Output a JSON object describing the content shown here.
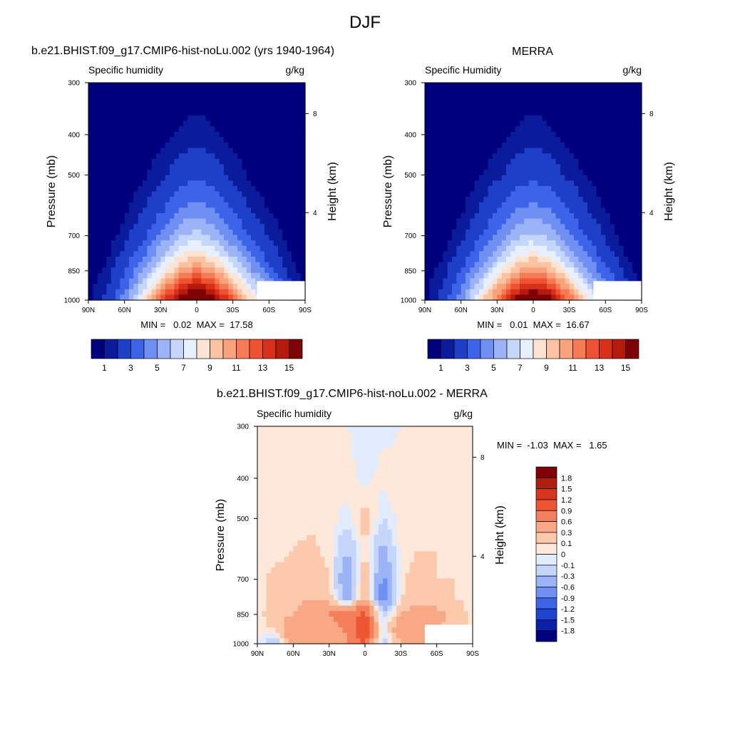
{
  "figure": {
    "title": "DJF",
    "panels": {
      "model": {
        "title": "b.e21.BHIST.f09_g17.CMIP6-hist-noLu.002 (yrs 1940-1964)",
        "variable": "Specific humidity",
        "units": "g/kg",
        "minmax": "MIN =   0.02  MAX =  17.58"
      },
      "obs": {
        "title": "MERRA",
        "variable": "Specific Humidity",
        "units": "g/kg",
        "minmax": "MIN =   0.01  MAX =  16.67"
      },
      "diff": {
        "title": "b.e21.BHIST.f09_g17.CMIP6-hist-noLu.002 - MERRA",
        "variable": "Specific humidity",
        "units": "g/kg",
        "minmax": "MIN =  -1.03  MAX =   1.65"
      }
    },
    "y_label": "Pressure (mb)",
    "y2_label": "Height (km)",
    "pressure_ticks": [
      "300",
      "400",
      "500",
      "700",
      "850",
      "1000"
    ],
    "height_ticks": [
      "8",
      "4"
    ],
    "lat_ticks": [
      "90N",
      "60N",
      "30N",
      "0",
      "30S",
      "60S",
      "90S"
    ]
  },
  "colors": {
    "abs_scale": [
      "#00007f",
      "#0a1b9c",
      "#1e3fc8",
      "#3d63e8",
      "#6f8ff2",
      "#9cb4f7",
      "#c6d6fb",
      "#e8f0ff",
      "#fde3d2",
      "#fcc3a3",
      "#f9a27c",
      "#f67b55",
      "#ee5230",
      "#d9301a",
      "#b51a0d",
      "#7e0306"
    ],
    "diff_scale": [
      "#00007f",
      "#0a20a8",
      "#1f43d2",
      "#3d63e8",
      "#6f8ff2",
      "#9cb4f7",
      "#c6d6fb",
      "#e3ecff",
      "#fde8da",
      "#fcc9ad",
      "#f9a886",
      "#f67f5b",
      "#ee5632",
      "#d6361b",
      "#b01f0e",
      "#7e0306"
    ]
  },
  "chart_data": [
    {
      "type": "heatmap",
      "title": "b.e21.BHIST.f09_g17.CMIP6-hist-noLu.002 (yrs 1940-1964)",
      "subtitle": "Specific humidity",
      "units": "g/kg",
      "xlabel": "",
      "ylabel": "Pressure (mb)",
      "y2label": "Height (km)",
      "x_ticks": [
        "90N",
        "60N",
        "30N",
        "0",
        "30S",
        "60S",
        "90S"
      ],
      "y_ticks": [
        300,
        400,
        500,
        700,
        850,
        1000
      ],
      "xlim": [
        -90,
        90
      ],
      "ylim": [
        1000,
        300
      ],
      "y_scale": "log",
      "colorbar": {
        "position": "bottom",
        "levels": [
          0.5,
          1,
          2,
          3,
          4,
          5,
          6,
          7,
          8,
          9,
          10,
          11,
          12,
          13,
          14,
          15
        ],
        "tick_labels": [
          "1",
          "3",
          "5",
          "7",
          "9",
          "11",
          "13",
          "15"
        ]
      },
      "min": 0.02,
      "max": 17.58,
      "x": [
        -90,
        -75,
        -60,
        -45,
        -30,
        -15,
        0,
        15,
        30,
        45,
        60,
        75,
        90
      ],
      "y": [
        1000,
        925,
        850,
        775,
        700,
        600,
        500,
        400,
        300
      ],
      "values": [
        [
          0.4,
          1.2,
          3.5,
          6.8,
          11.0,
          15.0,
          17.0,
          15.0,
          11.0,
          7.8,
          5.5,
          2.5,
          0.4
        ],
        [
          0.3,
          0.9,
          2.6,
          5.3,
          8.8,
          12.0,
          13.5,
          12.0,
          9.0,
          6.0,
          3.8,
          1.4,
          0.3
        ],
        [
          0.2,
          0.6,
          1.8,
          3.9,
          6.5,
          9.0,
          10.3,
          9.1,
          6.6,
          4.2,
          2.4,
          0.9,
          0.2
        ],
        [
          0.15,
          0.4,
          1.2,
          2.7,
          4.7,
          6.7,
          7.6,
          6.6,
          4.7,
          2.9,
          1.5,
          0.6,
          0.15
        ],
        [
          0.1,
          0.25,
          0.7,
          1.7,
          3.2,
          4.8,
          5.5,
          4.6,
          3.2,
          1.8,
          0.9,
          0.35,
          0.1
        ],
        [
          0.05,
          0.12,
          0.35,
          0.9,
          1.7,
          2.8,
          3.4,
          2.8,
          1.8,
          0.9,
          0.45,
          0.15,
          0.05
        ],
        [
          0.03,
          0.06,
          0.15,
          0.4,
          0.8,
          1.4,
          1.8,
          1.4,
          0.8,
          0.4,
          0.2,
          0.08,
          0.03
        ],
        [
          0.02,
          0.03,
          0.05,
          0.12,
          0.3,
          0.55,
          0.75,
          0.55,
          0.3,
          0.12,
          0.06,
          0.03,
          0.02
        ],
        [
          0.02,
          0.02,
          0.02,
          0.04,
          0.08,
          0.14,
          0.2,
          0.14,
          0.08,
          0.04,
          0.02,
          0.02,
          0.02
        ]
      ]
    },
    {
      "type": "heatmap",
      "title": "MERRA",
      "subtitle": "Specific Humidity",
      "units": "g/kg",
      "xlabel": "",
      "ylabel": "Pressure (mb)",
      "y2label": "Height (km)",
      "x_ticks": [
        "90N",
        "60N",
        "30N",
        "0",
        "30S",
        "60S",
        "90S"
      ],
      "y_ticks": [
        300,
        400,
        500,
        700,
        850,
        1000
      ],
      "xlim": [
        -90,
        90
      ],
      "ylim": [
        1000,
        300
      ],
      "y_scale": "log",
      "colorbar": {
        "position": "bottom",
        "levels": [
          0.5,
          1,
          2,
          3,
          4,
          5,
          6,
          7,
          8,
          9,
          10,
          11,
          12,
          13,
          14,
          15
        ],
        "tick_labels": [
          "1",
          "3",
          "5",
          "7",
          "9",
          "11",
          "13",
          "15"
        ]
      },
      "min": 0.01,
      "max": 16.67,
      "x": [
        -90,
        -75,
        -60,
        -45,
        -30,
        -15,
        0,
        15,
        30,
        45,
        60,
        75,
        90
      ],
      "y": [
        1000,
        925,
        850,
        775,
        700,
        600,
        500,
        400,
        300
      ],
      "values": [
        [
          0.4,
          1.3,
          3.8,
          7.0,
          10.8,
          14.5,
          16.3,
          14.5,
          11.0,
          7.6,
          5.0,
          2.2,
          0.4
        ],
        [
          0.3,
          1.0,
          2.8,
          5.4,
          8.6,
          11.5,
          12.8,
          11.6,
          8.8,
          5.8,
          3.5,
          1.3,
          0.3
        ],
        [
          0.2,
          0.7,
          1.9,
          4.0,
          6.4,
          8.7,
          9.9,
          8.8,
          6.4,
          4.1,
          2.3,
          0.9,
          0.2
        ],
        [
          0.15,
          0.45,
          1.3,
          2.8,
          4.6,
          6.5,
          7.3,
          6.4,
          4.5,
          2.8,
          1.4,
          0.55,
          0.15
        ],
        [
          0.1,
          0.27,
          0.75,
          1.8,
          3.2,
          4.7,
          5.3,
          4.5,
          3.1,
          1.8,
          0.85,
          0.33,
          0.1
        ],
        [
          0.05,
          0.13,
          0.37,
          0.95,
          1.8,
          2.8,
          3.3,
          2.8,
          1.8,
          0.95,
          0.45,
          0.15,
          0.05
        ],
        [
          0.03,
          0.06,
          0.15,
          0.42,
          0.82,
          1.4,
          1.75,
          1.4,
          0.82,
          0.42,
          0.2,
          0.08,
          0.03
        ],
        [
          0.02,
          0.03,
          0.05,
          0.12,
          0.3,
          0.55,
          0.72,
          0.55,
          0.3,
          0.12,
          0.06,
          0.03,
          0.02
        ],
        [
          0.01,
          0.02,
          0.02,
          0.04,
          0.08,
          0.14,
          0.2,
          0.14,
          0.08,
          0.04,
          0.02,
          0.02,
          0.01
        ]
      ]
    },
    {
      "type": "heatmap",
      "title": "b.e21.BHIST.f09_g17.CMIP6-hist-noLu.002 - MERRA",
      "subtitle": "Specific humidity",
      "units": "g/kg",
      "xlabel": "",
      "ylabel": "Pressure (mb)",
      "y2label": "Height (km)",
      "x_ticks": [
        "90N",
        "60N",
        "30N",
        "0",
        "30S",
        "60S",
        "90S"
      ],
      "y_ticks": [
        300,
        400,
        500,
        700,
        850,
        1000
      ],
      "xlim": [
        -90,
        90
      ],
      "ylim": [
        1000,
        300
      ],
      "y_scale": "log",
      "colorbar": {
        "position": "right",
        "levels": [
          -1.8,
          -1.5,
          -1.2,
          -0.9,
          -0.6,
          -0.3,
          -0.1,
          0,
          0.1,
          0.3,
          0.6,
          0.9,
          1.2,
          1.5,
          1.8
        ],
        "tick_labels": [
          "1.8",
          "1.5",
          "1.2",
          "0.9",
          "0.6",
          "0.3",
          "0.1",
          "0",
          "-0.1",
          "-0.3",
          "-0.6",
          "-0.9",
          "-1.2",
          "-1.5",
          "-1.8"
        ]
      },
      "min": -1.03,
      "max": 1.65,
      "x": [
        -90,
        -75,
        -60,
        -45,
        -30,
        -15,
        0,
        15,
        30,
        45,
        60,
        75,
        90
      ],
      "y": [
        1000,
        925,
        850,
        775,
        700,
        600,
        500,
        400,
        300
      ],
      "values": [
        [
          0.0,
          -0.3,
          0.6,
          0.4,
          0.3,
          0.5,
          1.0,
          -0.2,
          0.3,
          0.4,
          0.5,
          0.3,
          0.0
        ],
        [
          0.05,
          0.1,
          0.6,
          0.5,
          0.4,
          0.7,
          1.2,
          -0.1,
          0.6,
          0.5,
          0.3,
          0.2,
          0.05
        ],
        [
          0.05,
          0.2,
          0.3,
          0.5,
          0.6,
          0.8,
          1.0,
          -0.2,
          0.3,
          0.5,
          0.4,
          0.2,
          0.05
        ],
        [
          0.05,
          0.15,
          0.2,
          0.3,
          0.2,
          -0.5,
          0.4,
          -0.9,
          0.1,
          0.2,
          0.15,
          0.1,
          0.05
        ],
        [
          0.05,
          0.15,
          0.2,
          0.3,
          0.1,
          -0.6,
          0.3,
          -0.7,
          0.05,
          0.2,
          0.1,
          0.1,
          0.05
        ],
        [
          0.05,
          0.05,
          0.1,
          0.15,
          0.05,
          -0.3,
          0.1,
          -0.4,
          0.05,
          0.1,
          0.1,
          0.05,
          0.05
        ],
        [
          0.05,
          0.05,
          0.05,
          0.05,
          0.05,
          -0.05,
          0.2,
          -0.1,
          0.05,
          0.05,
          0.05,
          0.05,
          0.05
        ],
        [
          0.05,
          0.05,
          0.05,
          0.05,
          0.05,
          0.05,
          -0.05,
          0.05,
          0.05,
          0.05,
          0.05,
          0.05,
          0.05
        ],
        [
          0.05,
          0.05,
          0.05,
          0.05,
          0.05,
          0.0,
          -0.05,
          -0.05,
          0.0,
          0.05,
          0.05,
          0.05,
          0.05
        ]
      ]
    }
  ]
}
